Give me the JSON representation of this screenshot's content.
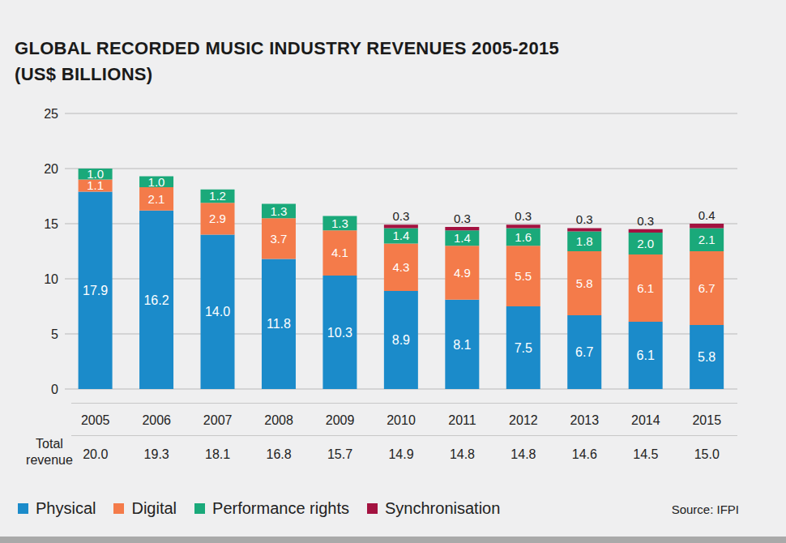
{
  "chart_data": {
    "type": "bar",
    "title": "GLOBAL RECORDED MUSIC INDUSTRY REVENUES 2005-2015",
    "subtitle": "(US$ BILLIONS)",
    "categories": [
      "2005",
      "2006",
      "2007",
      "2008",
      "2009",
      "2010",
      "2011",
      "2012",
      "2013",
      "2014",
      "2015"
    ],
    "series": [
      {
        "name": "Physical",
        "color": "#1b8bca",
        "values": [
          17.9,
          16.2,
          14.0,
          11.8,
          10.3,
          8.9,
          8.1,
          7.5,
          6.7,
          6.1,
          5.8
        ],
        "value_labels": [
          "17.9",
          "16.2",
          "14.0",
          "11.8",
          "10.3",
          "8.9",
          "8.1",
          "7.5",
          "6.7",
          "6.1",
          "5.8"
        ]
      },
      {
        "name": "Digital",
        "color": "#f47b4a",
        "values": [
          1.1,
          2.1,
          2.9,
          3.7,
          4.1,
          4.3,
          4.9,
          5.5,
          5.8,
          6.1,
          6.7
        ]
      },
      {
        "name": "Performance rights",
        "color": "#1aa97a",
        "values": [
          1.0,
          1.0,
          1.2,
          1.3,
          1.3,
          1.4,
          1.4,
          1.6,
          1.8,
          2.0,
          2.1
        ],
        "value_labels": [
          "1.0",
          "1.0",
          "1.2",
          "1.3",
          "1.3",
          "1.4",
          "1.4",
          "1.6",
          "1.8",
          "2.0",
          "2.1"
        ]
      },
      {
        "name": "Synchronisation",
        "color": "#a31240",
        "values": [
          0,
          0,
          0,
          0,
          0,
          0.3,
          0.3,
          0.3,
          0.3,
          0.3,
          0.4
        ]
      }
    ],
    "total_revenue": {
      "label": "Total revenue",
      "values": [
        20.0,
        19.3,
        18.1,
        16.8,
        15.7,
        14.9,
        14.8,
        14.8,
        14.6,
        14.5,
        15.0
      ],
      "value_labels": [
        "20.0",
        "19.3",
        "18.1",
        "16.8",
        "15.7",
        "14.9",
        "14.8",
        "14.8",
        "14.6",
        "14.5",
        "15.0"
      ]
    },
    "ylim": [
      0,
      25
    ],
    "yticks": [
      0,
      5,
      10,
      15,
      20,
      25
    ],
    "grid": true,
    "stacked": true,
    "data_labels": true,
    "legend": "bottom",
    "source": "Source: IFPI"
  }
}
